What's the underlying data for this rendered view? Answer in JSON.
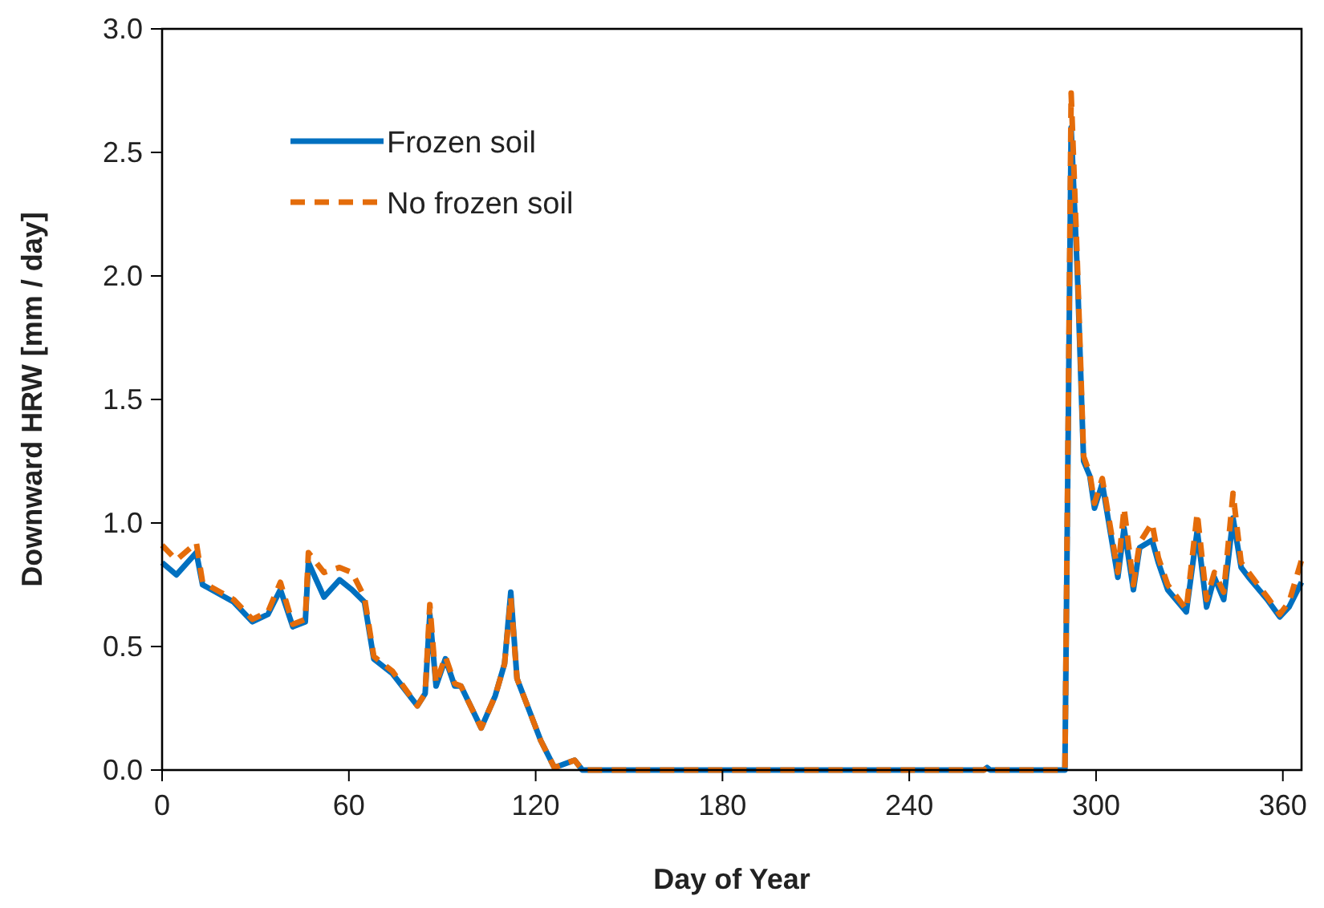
{
  "chart_data": {
    "type": "line",
    "xlabel": "Day of Year",
    "ylabel": "Downward HRW [mm / day]",
    "xlim": [
      0,
      366
    ],
    "xticks": [
      0,
      60,
      120,
      180,
      240,
      300,
      360
    ],
    "ylim": [
      0,
      3
    ],
    "yticks": [
      {
        "value": 0,
        "label": "0.0"
      },
      {
        "value": 0.5,
        "label": "0.5"
      },
      {
        "value": 1,
        "label": "1.0"
      },
      {
        "value": 1.5,
        "label": "1.5"
      },
      {
        "value": 2,
        "label": "2.0"
      },
      {
        "value": 2.5,
        "label": "2.5"
      },
      {
        "value": 3,
        "label": "3.0"
      }
    ],
    "grid": false,
    "legend": "top left",
    "x": [
      0,
      4.6,
      11,
      13,
      23,
      29,
      34,
      38,
      42,
      46,
      47,
      52,
      57,
      61,
      65,
      68,
      74,
      82,
      84.5,
      86,
      88,
      91,
      94,
      96,
      102.5,
      107,
      110,
      112,
      114,
      121.6,
      126,
      132.5,
      135,
      264,
      265,
      266,
      290,
      292,
      294,
      296,
      298,
      299.5,
      302,
      307,
      309,
      312,
      314,
      318,
      320,
      323,
      329,
      332.5,
      335.5,
      338,
      341,
      344,
      346.6,
      349,
      355,
      359,
      362,
      366
    ],
    "series": [
      {
        "name": "Frozen soil",
        "color": "#0070c0",
        "line_style": "solid",
        "values": [
          0.84,
          0.79,
          0.88,
          0.75,
          0.68,
          0.6,
          0.63,
          0.73,
          0.58,
          0.6,
          0.84,
          0.7,
          0.77,
          0.73,
          0.68,
          0.45,
          0.39,
          0.26,
          0.31,
          0.63,
          0.34,
          0.45,
          0.34,
          0.34,
          0.17,
          0.3,
          0.43,
          0.72,
          0.37,
          0.12,
          0.01,
          0.04,
          0,
          0,
          0.01,
          0,
          0,
          2.6,
          2.01,
          1.25,
          1.19,
          1.06,
          1.16,
          0.78,
          0.98,
          0.73,
          0.9,
          0.93,
          0.84,
          0.73,
          0.64,
          0.97,
          0.66,
          0.78,
          0.69,
          1.02,
          0.82,
          0.78,
          0.69,
          0.62,
          0.66,
          0.76
        ]
      },
      {
        "name": "No frozen soil",
        "color": "#e46c0a",
        "line_style": "dashed",
        "values": [
          0.91,
          0.85,
          0.92,
          0.76,
          0.69,
          0.61,
          0.64,
          0.76,
          0.59,
          0.61,
          0.88,
          0.8,
          0.82,
          0.8,
          0.7,
          0.46,
          0.4,
          0.26,
          0.31,
          0.67,
          0.35,
          0.46,
          0.35,
          0.34,
          0.17,
          0.3,
          0.43,
          0.7,
          0.37,
          0.12,
          0.01,
          0.04,
          0,
          0,
          0.01,
          0,
          0,
          2.74,
          2.05,
          1.27,
          1.2,
          1.08,
          1.18,
          0.8,
          1.06,
          0.75,
          0.92,
          1,
          0.86,
          0.75,
          0.65,
          1.04,
          0.69,
          0.8,
          0.72,
          1.12,
          0.84,
          0.8,
          0.7,
          0.63,
          0.68,
          0.85
        ]
      }
    ]
  }
}
